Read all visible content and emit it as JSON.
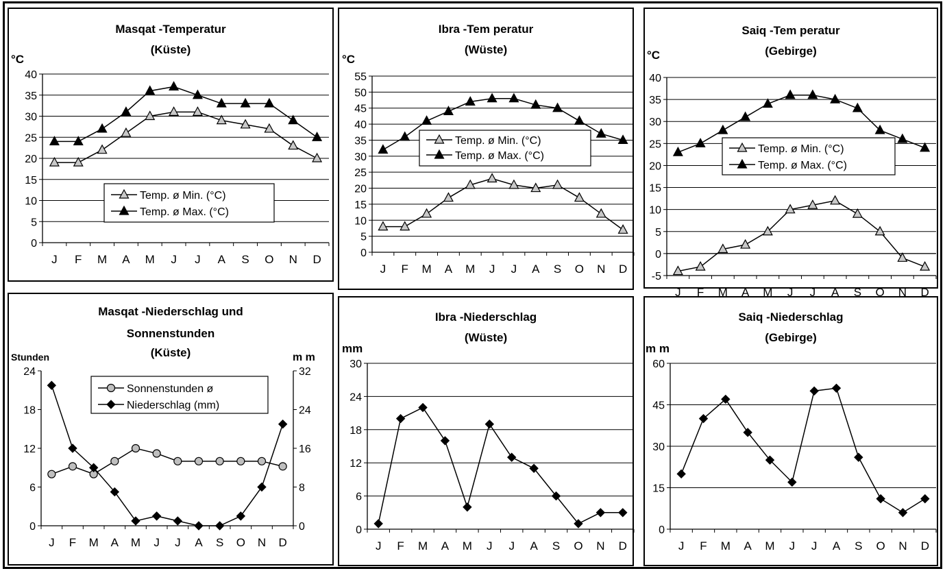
{
  "chart_data": [
    {
      "type": "line",
      "title": "Masqat -Temperatur",
      "subtitle": "(Küste)",
      "ylabel": "°C",
      "ylim": [
        0,
        40
      ],
      "yticks": [
        0,
        5,
        10,
        15,
        20,
        25,
        30,
        35,
        40
      ],
      "categories": [
        "J",
        "F",
        "M",
        "A",
        "M",
        "J",
        "J",
        "A",
        "S",
        "O",
        "N",
        "D"
      ],
      "legend": "bottom-right",
      "grid": true,
      "series": [
        {
          "name": "Temp. ø Min. (°C)",
          "marker": "triangle-open",
          "values": [
            19,
            19,
            22,
            26,
            30,
            31,
            31,
            29,
            28,
            27,
            23,
            20
          ]
        },
        {
          "name": "Temp. ø Max. (°C)",
          "marker": "triangle-filled",
          "values": [
            24,
            24,
            27,
            31,
            36,
            37,
            35,
            33,
            33,
            33,
            29,
            25
          ]
        }
      ]
    },
    {
      "type": "line",
      "title": "Ibra -Tem peratur",
      "subtitle": "(Wüste)",
      "ylabel": "°C",
      "ylim": [
        0,
        55
      ],
      "yticks": [
        0,
        5,
        10,
        15,
        20,
        25,
        30,
        35,
        40,
        45,
        50,
        55
      ],
      "categories": [
        "J",
        "F",
        "M",
        "A",
        "M",
        "J",
        "J",
        "A",
        "S",
        "O",
        "N",
        "D"
      ],
      "legend": "center-left",
      "grid": true,
      "series": [
        {
          "name": "Temp. ø Min. (°C)",
          "marker": "triangle-open",
          "values": [
            8,
            8,
            12,
            17,
            21,
            23,
            21,
            20,
            21,
            17,
            12,
            7
          ]
        },
        {
          "name": "Temp. ø Max. (°C)",
          "marker": "triangle-filled",
          "values": [
            32,
            36,
            41,
            44,
            47,
            48,
            48,
            46,
            45,
            41,
            37,
            35
          ]
        }
      ]
    },
    {
      "type": "line",
      "title": "Saiq -Tem peratur",
      "subtitle": "(Gebirge)",
      "ylabel": "°C",
      "ylim": [
        -5,
        40
      ],
      "yticks": [
        -5,
        0,
        5,
        10,
        15,
        20,
        25,
        30,
        35,
        40
      ],
      "categories": [
        "J",
        "F",
        "M",
        "A",
        "M",
        "J",
        "J",
        "A",
        "S",
        "O",
        "N",
        "D"
      ],
      "legend": "center-left",
      "grid": true,
      "series": [
        {
          "name": "Temp. ø Min. (°C)",
          "marker": "triangle-open",
          "values": [
            -4,
            -3,
            1,
            2,
            5,
            10,
            11,
            12,
            9,
            5,
            -1,
            -3
          ]
        },
        {
          "name": "Temp. ø Max. (°C)",
          "marker": "triangle-filled",
          "values": [
            23,
            25,
            28,
            31,
            34,
            36,
            36,
            35,
            33,
            28,
            26,
            24
          ]
        }
      ]
    },
    {
      "type": "line",
      "title": "Masqat -Niederschlag und",
      "subtitle": "Sonnenstunden",
      "subtitle2": "(Küste)",
      "ylabel": "Stunden",
      "y2label": "m m",
      "ylim": [
        0,
        24
      ],
      "yticks": [
        0,
        6,
        12,
        18,
        24
      ],
      "y2lim": [
        0,
        32
      ],
      "y2ticks": [
        0,
        8,
        16,
        24,
        32
      ],
      "categories": [
        "J",
        "F",
        "M",
        "A",
        "M",
        "J",
        "J",
        "A",
        "S",
        "O",
        "N",
        "D"
      ],
      "legend": "top-center",
      "grid": false,
      "series": [
        {
          "name": "Sonnenstunden ø",
          "marker": "circle-gray",
          "axis": "left",
          "values": [
            8,
            9.2,
            8,
            10,
            12,
            11.2,
            10,
            10,
            10,
            10,
            10,
            9.2
          ]
        },
        {
          "name": "Niederschlag (mm)",
          "marker": "diamond",
          "axis": "right",
          "values": [
            29,
            16,
            12,
            7,
            1,
            2,
            1,
            0,
            0,
            2,
            8,
            21
          ]
        }
      ]
    },
    {
      "type": "line",
      "title": "Ibra -Niederschlag",
      "subtitle": "(Wüste)",
      "ylabel": "mm",
      "ylim": [
        0,
        30
      ],
      "yticks": [
        0,
        6,
        12,
        18,
        24,
        30
      ],
      "categories": [
        "J",
        "F",
        "M",
        "A",
        "M",
        "J",
        "J",
        "A",
        "S",
        "O",
        "N",
        "D"
      ],
      "grid": true,
      "series": [
        {
          "marker": "diamond",
          "values": [
            1,
            20,
            22,
            16,
            4,
            19,
            13,
            11,
            6,
            1,
            3,
            3
          ]
        }
      ]
    },
    {
      "type": "line",
      "title": "Saiq -Niederschlag",
      "subtitle": "(Gebirge)",
      "ylabel": "m m",
      "ylim": [
        0,
        60
      ],
      "yticks": [
        0,
        15,
        30,
        45,
        60
      ],
      "categories": [
        "J",
        "F",
        "M",
        "A",
        "M",
        "J",
        "J",
        "A",
        "S",
        "O",
        "N",
        "D"
      ],
      "grid": true,
      "series": [
        {
          "marker": "diamond",
          "values": [
            20,
            40,
            47,
            35,
            25,
            17,
            50,
            51,
            26,
            11,
            6,
            11
          ]
        }
      ]
    }
  ]
}
